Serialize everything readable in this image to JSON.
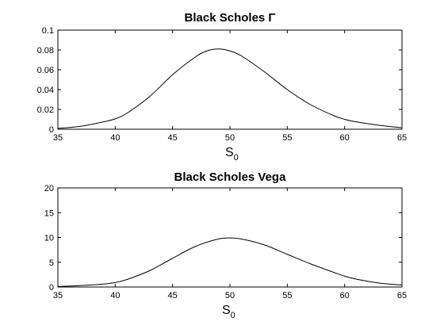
{
  "chart_data": [
    {
      "type": "line",
      "title": "Black Scholes Γ",
      "xlabel": "S",
      "xlabel_sub": "0",
      "ylabel": "",
      "xlim": [
        35,
        65
      ],
      "ylim": [
        0,
        0.1
      ],
      "xticks": [
        35,
        40,
        45,
        50,
        55,
        60,
        65
      ],
      "yticks": [
        0,
        0.02,
        0.04,
        0.06,
        0.08,
        0.1
      ],
      "grid": false,
      "series": [
        {
          "x": [
            35,
            37,
            39,
            40,
            41,
            43,
            45,
            47,
            48,
            49,
            50,
            51,
            53,
            55,
            57,
            59,
            60,
            61,
            63,
            65
          ],
          "y": [
            0.0008,
            0.003,
            0.0075,
            0.0105,
            0.016,
            0.033,
            0.055,
            0.073,
            0.079,
            0.081,
            0.079,
            0.074,
            0.058,
            0.04,
            0.025,
            0.014,
            0.01,
            0.0075,
            0.004,
            0.0015
          ]
        }
      ]
    },
    {
      "type": "line",
      "title": "Black Scholes Vega",
      "xlabel": "S",
      "xlabel_sub": "0",
      "ylabel": "",
      "xlim": [
        35,
        65
      ],
      "ylim": [
        0,
        20
      ],
      "xticks": [
        35,
        40,
        45,
        50,
        55,
        60,
        65
      ],
      "yticks": [
        0,
        5,
        10,
        15,
        20
      ],
      "grid": false,
      "series": [
        {
          "x": [
            35,
            37,
            39,
            40,
            41,
            43,
            45,
            47,
            49,
            50,
            51,
            53,
            55,
            57,
            59,
            60,
            61,
            63,
            65
          ],
          "y": [
            0.1,
            0.3,
            0.6,
            0.9,
            1.5,
            3.3,
            5.8,
            8.2,
            9.7,
            9.9,
            9.7,
            8.5,
            6.6,
            4.7,
            3.0,
            2.2,
            1.6,
            0.8,
            0.4
          ]
        }
      ]
    }
  ]
}
